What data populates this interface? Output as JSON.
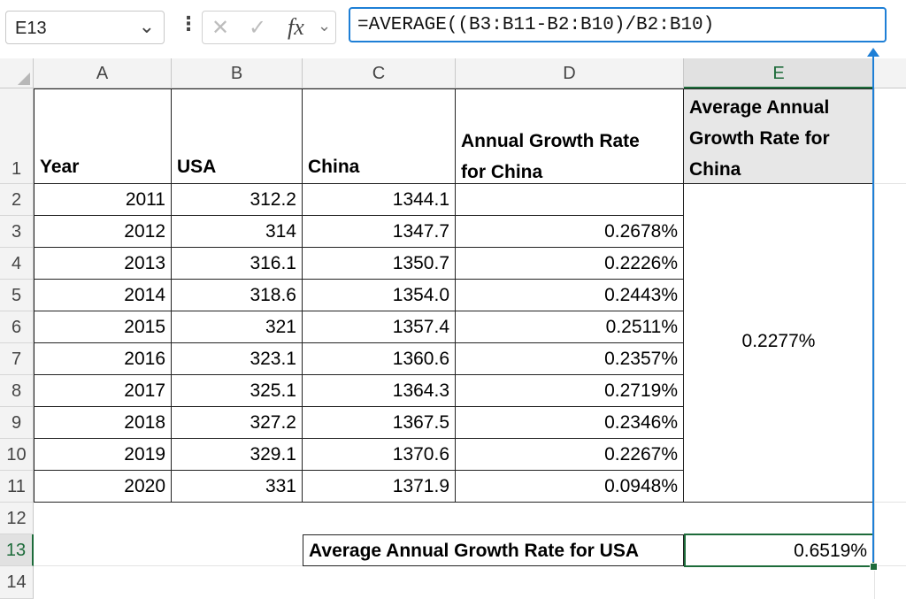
{
  "formula_bar": {
    "name_box": "E13",
    "name_box_chevron": "⌄",
    "more_dots": "⋮",
    "cancel_glyph": "✕",
    "enter_glyph": "✓",
    "fx_label": "fx",
    "fx_chevron": "⌄",
    "formula": "=AVERAGE((B3:B11-B2:B10)/B2:B10)"
  },
  "columns": [
    "A",
    "B",
    "C",
    "D",
    "E"
  ],
  "rows": [
    "1",
    "2",
    "3",
    "4",
    "5",
    "6",
    "7",
    "8",
    "9",
    "10",
    "11",
    "12",
    "13",
    "14"
  ],
  "headers": {
    "year": "Year",
    "usa": "USA",
    "china": "China",
    "growth_china_line1": "Annual Growth Rate",
    "growth_china_line2": "for China",
    "avg_china_line1": "Average Annual",
    "avg_china_line2": "Growth Rate for",
    "avg_china_line3": "China"
  },
  "table": [
    {
      "year": "2011",
      "usa": "312.2",
      "china": "1344.1",
      "growth": ""
    },
    {
      "year": "2012",
      "usa": "314",
      "china": "1347.7",
      "growth": "0.2678%"
    },
    {
      "year": "2013",
      "usa": "316.1",
      "china": "1350.7",
      "growth": "0.2226%"
    },
    {
      "year": "2014",
      "usa": "318.6",
      "china": "1354.0",
      "growth": "0.2443%"
    },
    {
      "year": "2015",
      "usa": "321",
      "china": "1357.4",
      "growth": "0.2511%"
    },
    {
      "year": "2016",
      "usa": "323.1",
      "china": "1360.6",
      "growth": "0.2357%"
    },
    {
      "year": "2017",
      "usa": "325.1",
      "china": "1364.3",
      "growth": "0.2719%"
    },
    {
      "year": "2018",
      "usa": "327.2",
      "china": "1367.5",
      "growth": "0.2346%"
    },
    {
      "year": "2019",
      "usa": "329.1",
      "china": "1370.6",
      "growth": "0.2267%"
    },
    {
      "year": "2020",
      "usa": "331",
      "china": "1371.9",
      "growth": "0.0948%"
    }
  ],
  "avg_china_value": "0.2277%",
  "avg_usa_label": "Average Annual Growth Rate for USA",
  "avg_usa_value": "0.6519%",
  "colors": {
    "accent_blue": "#1e7fd6",
    "selection_green": "#1d6b3a",
    "header_fill": "#e7e7e7"
  }
}
